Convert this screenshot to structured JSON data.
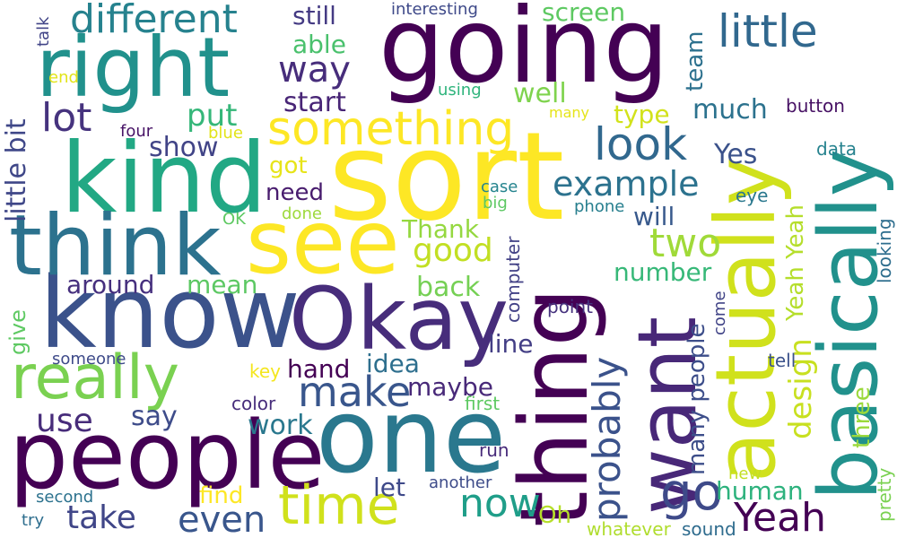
{
  "words": [
    {
      "text": "going",
      "color": "#440154"
    },
    {
      "text": "sort",
      "color": "#fde725"
    },
    {
      "text": "kind",
      "color": "#22a884"
    },
    {
      "text": "know",
      "color": "#3b528b"
    },
    {
      "text": "Okay",
      "color": "#472d7b"
    },
    {
      "text": "one",
      "color": "#2a788e"
    },
    {
      "text": "people",
      "color": "#440154"
    },
    {
      "text": "think",
      "color": "#2c728e"
    },
    {
      "text": "see",
      "color": "#fde725"
    },
    {
      "text": "right",
      "color": "#21918c"
    },
    {
      "text": "thing",
      "color": "#440154"
    },
    {
      "text": "want",
      "color": "#482878"
    },
    {
      "text": "actually",
      "color": "#d0e11c"
    },
    {
      "text": "basically",
      "color": "#21918c"
    },
    {
      "text": "really",
      "color": "#7ad151"
    },
    {
      "text": "time",
      "color": "#d0e11c"
    },
    {
      "text": "something",
      "color": "#fde725"
    },
    {
      "text": "different",
      "color": "#26828e"
    },
    {
      "text": "little",
      "color": "#31688e"
    },
    {
      "text": "look",
      "color": "#31688e"
    },
    {
      "text": "Yeah",
      "color": "#440154"
    },
    {
      "text": "go",
      "color": "#3e4a89"
    },
    {
      "text": "way",
      "color": "#472d7b"
    },
    {
      "text": "lot",
      "color": "#46337e"
    },
    {
      "text": "example",
      "color": "#2c728e"
    },
    {
      "text": "make",
      "color": "#39568c"
    },
    {
      "text": "use",
      "color": "#472c7a"
    },
    {
      "text": "even",
      "color": "#39568c"
    },
    {
      "text": "take",
      "color": "#404688"
    },
    {
      "text": "now",
      "color": "#1f9e89"
    },
    {
      "text": "two",
      "color": "#a0da39"
    },
    {
      "text": "good",
      "color": "#c2df23"
    },
    {
      "text": "probably",
      "color": "#3b528b"
    },
    {
      "text": "design",
      "color": "#c8e020"
    },
    {
      "text": "little bit",
      "color": "#3f4788"
    },
    {
      "text": "Yeah Yeah",
      "color": "#b5de2b"
    },
    {
      "text": "put",
      "color": "#35b779"
    },
    {
      "text": "show",
      "color": "#414487"
    },
    {
      "text": "Yes",
      "color": "#3b528b"
    },
    {
      "text": "much",
      "color": "#2c728e"
    },
    {
      "text": "type",
      "color": "#d2e21b"
    },
    {
      "text": "well",
      "color": "#7fd34e"
    },
    {
      "text": "start",
      "color": "#482576"
    },
    {
      "text": "able",
      "color": "#4ac16d"
    },
    {
      "text": "still",
      "color": "#443a83"
    },
    {
      "text": "screen",
      "color": "#5ec962"
    },
    {
      "text": "team",
      "color": "#2d718e"
    },
    {
      "text": "got",
      "color": "#e7e419"
    },
    {
      "text": "need",
      "color": "#481c6e"
    },
    {
      "text": "Thank",
      "color": "#95d840"
    },
    {
      "text": "will",
      "color": "#38598c"
    },
    {
      "text": "number",
      "color": "#37b878"
    },
    {
      "text": "human",
      "color": "#2db27d"
    },
    {
      "text": "mean",
      "color": "#5cc863"
    },
    {
      "text": "around",
      "color": "#46307e"
    },
    {
      "text": "back",
      "color": "#75d054"
    },
    {
      "text": "line",
      "color": "#433e85"
    },
    {
      "text": "idea",
      "color": "#2e6f8e"
    },
    {
      "text": "hand",
      "color": "#440154"
    },
    {
      "text": "maybe",
      "color": "#482979"
    },
    {
      "text": "say",
      "color": "#3e4c8a"
    },
    {
      "text": "work",
      "color": "#2a788e"
    },
    {
      "text": "let",
      "color": "#3e4989"
    },
    {
      "text": "find",
      "color": "#fde725"
    },
    {
      "text": "Oh",
      "color": "#b5de2b"
    },
    {
      "text": "many people",
      "color": "#3d4e8a"
    },
    {
      "text": "three",
      "color": "#9bd93c"
    },
    {
      "text": "give",
      "color": "#5ec962"
    },
    {
      "text": "computer",
      "color": "#424186"
    },
    {
      "text": "point",
      "color": "#46327e"
    },
    {
      "text": "come",
      "color": "#414487"
    },
    {
      "text": "looking",
      "color": "#2e6e8e"
    },
    {
      "text": "pretty",
      "color": "#7ad151"
    },
    {
      "text": "eye",
      "color": "#2a788e"
    },
    {
      "text": "data",
      "color": "#26828e"
    },
    {
      "text": "button",
      "color": "#471164"
    },
    {
      "text": "tell",
      "color": "#3b528b"
    },
    {
      "text": "new",
      "color": "#c2df23"
    },
    {
      "text": "sound",
      "color": "#2f6c8e"
    },
    {
      "text": "whatever",
      "color": "#b0dd2f"
    },
    {
      "text": "another",
      "color": "#3e4c8a"
    },
    {
      "text": "run",
      "color": "#472a7a"
    },
    {
      "text": "first",
      "color": "#5ec962"
    },
    {
      "text": "color",
      "color": "#472d7b"
    },
    {
      "text": "key",
      "color": "#f4e61e"
    },
    {
      "text": "someone",
      "color": "#3e4a89"
    },
    {
      "text": "second",
      "color": "#2c728e"
    },
    {
      "text": "try",
      "color": "#2e6e8e"
    },
    {
      "text": "phone",
      "color": "#277f8e"
    },
    {
      "text": "big",
      "color": "#5dc863"
    },
    {
      "text": "case",
      "color": "#25848e"
    },
    {
      "text": "done",
      "color": "#9dd93b"
    },
    {
      "text": "OK",
      "color": "#5ec962"
    },
    {
      "text": "blue",
      "color": "#e2e418"
    },
    {
      "text": "four",
      "color": "#481467"
    },
    {
      "text": "end",
      "color": "#e2e418"
    },
    {
      "text": "talk",
      "color": "#414487"
    },
    {
      "text": "using",
      "color": "#2fb47c"
    },
    {
      "text": "many",
      "color": "#e5e419"
    },
    {
      "text": "interesting",
      "color": "#3e4989"
    }
  ]
}
